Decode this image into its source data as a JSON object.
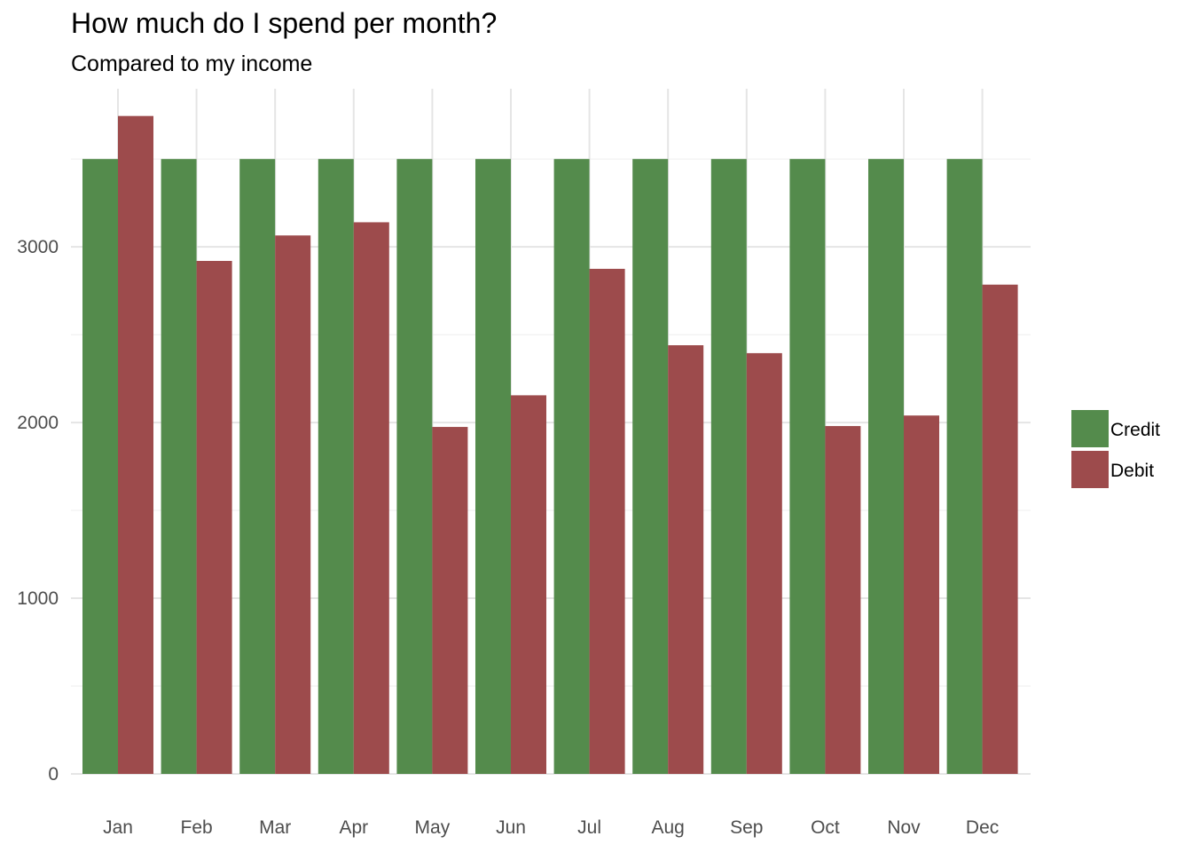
{
  "chart_data": {
    "type": "bar",
    "title": "How much do I spend per month?",
    "subtitle": "Compared to my income",
    "xlabel": "",
    "ylabel": "",
    "categories": [
      "Jan",
      "Feb",
      "Mar",
      "Apr",
      "May",
      "Jun",
      "Jul",
      "Aug",
      "Sep",
      "Oct",
      "Nov",
      "Dec"
    ],
    "series": [
      {
        "name": "Credit",
        "color": "#548b4c",
        "values": [
          3500,
          3500,
          3500,
          3500,
          3500,
          3500,
          3500,
          3500,
          3500,
          3500,
          3500,
          3500
        ]
      },
      {
        "name": "Debit",
        "color": "#9d4b4c",
        "values": [
          3745,
          2920,
          3065,
          3140,
          1975,
          2155,
          2875,
          2440,
          2395,
          1980,
          2040,
          2785
        ]
      }
    ],
    "ylim": [
      0,
      3900
    ],
    "yticks": [
      0,
      1000,
      2000,
      3000
    ],
    "grid": true,
    "legend": "right"
  }
}
